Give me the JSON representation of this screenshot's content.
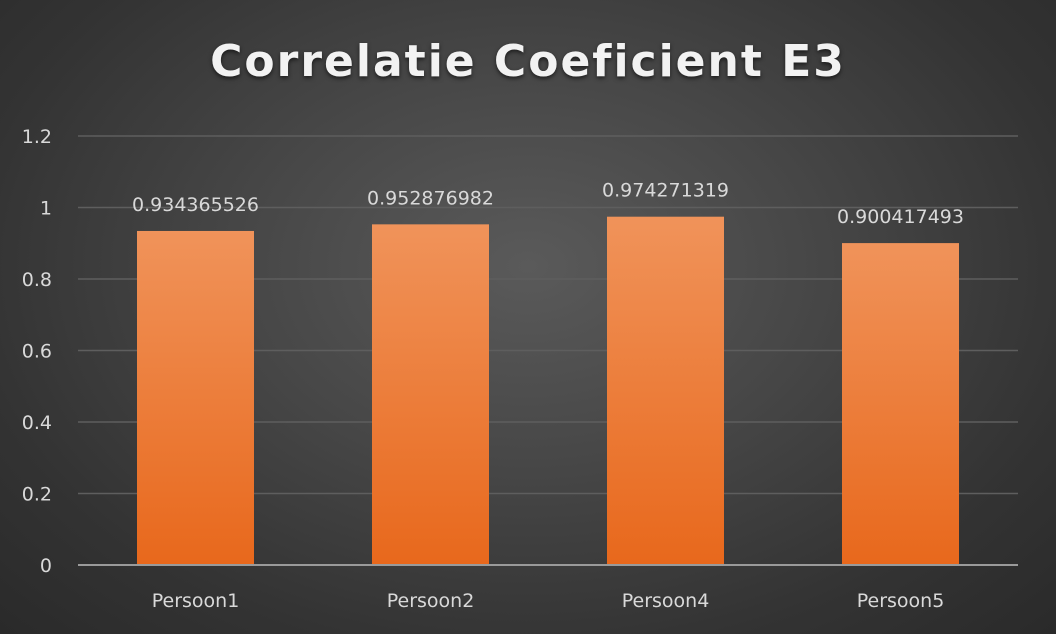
{
  "chart_data": {
    "type": "bar",
    "title": "Correlatie Coeficient E3",
    "categories": [
      "Persoon1",
      "Persoon2",
      "Persoon4",
      "Persoon5"
    ],
    "values": [
      0.934365526,
      0.952876982,
      0.974271319,
      0.900417493
    ],
    "data_labels": [
      "0.934365526",
      "0.952876982",
      "0.974271319",
      "0.900417493"
    ],
    "yticks": [
      "0",
      "0.2",
      "0.4",
      "0.6",
      "0.8",
      "1",
      "1.2"
    ],
    "ylim": [
      0,
      1.2
    ],
    "xlabel": "",
    "ylabel": "",
    "grid": true,
    "legend": "none",
    "colors": {
      "bar_top": "#f0935a",
      "bar_bottom": "#e8681c",
      "grid": "#5e5e5e",
      "axis": "#9a9a9a",
      "text": "#d9d9d9",
      "title": "#f2f2f2"
    }
  }
}
